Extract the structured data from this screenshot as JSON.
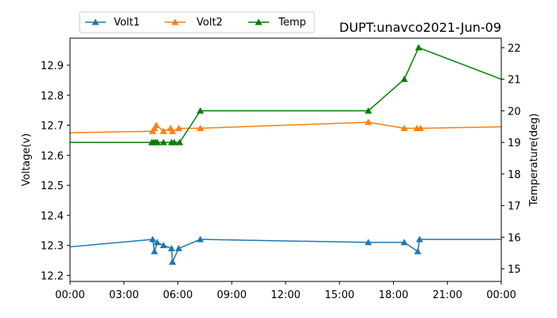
{
  "chart_data": {
    "type": "line",
    "title": "DUPT:unavco2021-Jun-09",
    "xlabel": "",
    "ylabel_left": "Voltage(v)",
    "ylabel_right": "Temperature(deg)",
    "xlim_hours": [
      0,
      24
    ],
    "ylim_left": [
      12.18,
      12.99
    ],
    "ylim_right": [
      14.6,
      22.3
    ],
    "x_ticks": [
      {
        "hour": 0,
        "label": "00:00"
      },
      {
        "hour": 3,
        "label": "03:00"
      },
      {
        "hour": 6,
        "label": "06:00"
      },
      {
        "hour": 9,
        "label": "09:00"
      },
      {
        "hour": 12,
        "label": "12:00"
      },
      {
        "hour": 15,
        "label": "15:00"
      },
      {
        "hour": 18,
        "label": "18:00"
      },
      {
        "hour": 21,
        "label": "21:00"
      },
      {
        "hour": 24,
        "label": "00:00"
      }
    ],
    "y_ticks_left": [
      {
        "value": 12.2,
        "label": "12.2"
      },
      {
        "value": 12.3,
        "label": "12.3"
      },
      {
        "value": 12.4,
        "label": "12.4"
      },
      {
        "value": 12.5,
        "label": "12.5"
      },
      {
        "value": 12.6,
        "label": "12.6"
      },
      {
        "value": 12.7,
        "label": "12.7"
      },
      {
        "value": 12.8,
        "label": "12.8"
      },
      {
        "value": 12.9,
        "label": "12.9"
      }
    ],
    "y_ticks_right": [
      {
        "value": 15,
        "label": "15"
      },
      {
        "value": 16,
        "label": "16"
      },
      {
        "value": 17,
        "label": "17"
      },
      {
        "value": 18,
        "label": "18"
      },
      {
        "value": 19,
        "label": "19"
      },
      {
        "value": 20,
        "label": "20"
      },
      {
        "value": 21,
        "label": "21"
      },
      {
        "value": 22,
        "label": "22"
      }
    ],
    "legend": {
      "placement": "top-left, above plot",
      "entries": [
        {
          "name": "Volt1",
          "color": "#1f77b4"
        },
        {
          "name": "Volt2",
          "color": "#ff7f0e"
        },
        {
          "name": "Temp",
          "color": "#008000"
        }
      ]
    },
    "series": [
      {
        "name": "Volt1",
        "axis": "left",
        "color": "#1f77b4",
        "line_start": {
          "x": 0,
          "y": 12.295
        },
        "line_end": {
          "x": 24,
          "y": 12.32
        },
        "points": [
          {
            "x": 4.6,
            "y": 12.32
          },
          {
            "x": 4.7,
            "y": 12.28
          },
          {
            "x": 4.85,
            "y": 12.31
          },
          {
            "x": 5.2,
            "y": 12.3
          },
          {
            "x": 5.65,
            "y": 12.29
          },
          {
            "x": 5.7,
            "y": 12.245
          },
          {
            "x": 6.05,
            "y": 12.29
          },
          {
            "x": 7.25,
            "y": 12.32
          },
          {
            "x": 16.6,
            "y": 12.31
          },
          {
            "x": 18.6,
            "y": 12.31
          },
          {
            "x": 19.35,
            "y": 12.28
          },
          {
            "x": 19.45,
            "y": 12.32
          }
        ]
      },
      {
        "name": "Volt2",
        "axis": "left",
        "color": "#ff7f0e",
        "line_start": {
          "x": 0,
          "y": 12.675
        },
        "line_end": {
          "x": 24,
          "y": 12.695
        },
        "points": [
          {
            "x": 4.6,
            "y": 12.68
          },
          {
            "x": 4.7,
            "y": 12.69
          },
          {
            "x": 4.8,
            "y": 12.7
          },
          {
            "x": 5.2,
            "y": 12.68
          },
          {
            "x": 5.6,
            "y": 12.69
          },
          {
            "x": 5.7,
            "y": 12.68
          },
          {
            "x": 6.05,
            "y": 12.69
          },
          {
            "x": 7.25,
            "y": 12.69
          },
          {
            "x": 16.6,
            "y": 12.71
          },
          {
            "x": 18.6,
            "y": 12.69
          },
          {
            "x": 19.3,
            "y": 12.69
          },
          {
            "x": 19.5,
            "y": 12.69
          }
        ]
      },
      {
        "name": "Temp",
        "axis": "right",
        "color": "#008000",
        "line_start": {
          "x": 0,
          "y": 19
        },
        "line_end": {
          "x": 24,
          "y": 21
        },
        "points": [
          {
            "x": 4.55,
            "y": 19
          },
          {
            "x": 4.65,
            "y": 19
          },
          {
            "x": 4.75,
            "y": 19
          },
          {
            "x": 4.85,
            "y": 19
          },
          {
            "x": 5.2,
            "y": 19
          },
          {
            "x": 5.65,
            "y": 19
          },
          {
            "x": 5.8,
            "y": 19
          },
          {
            "x": 6.1,
            "y": 19
          },
          {
            "x": 7.25,
            "y": 20
          },
          {
            "x": 16.6,
            "y": 20
          },
          {
            "x": 18.6,
            "y": 21
          },
          {
            "x": 19.4,
            "y": 22
          }
        ]
      }
    ]
  }
}
